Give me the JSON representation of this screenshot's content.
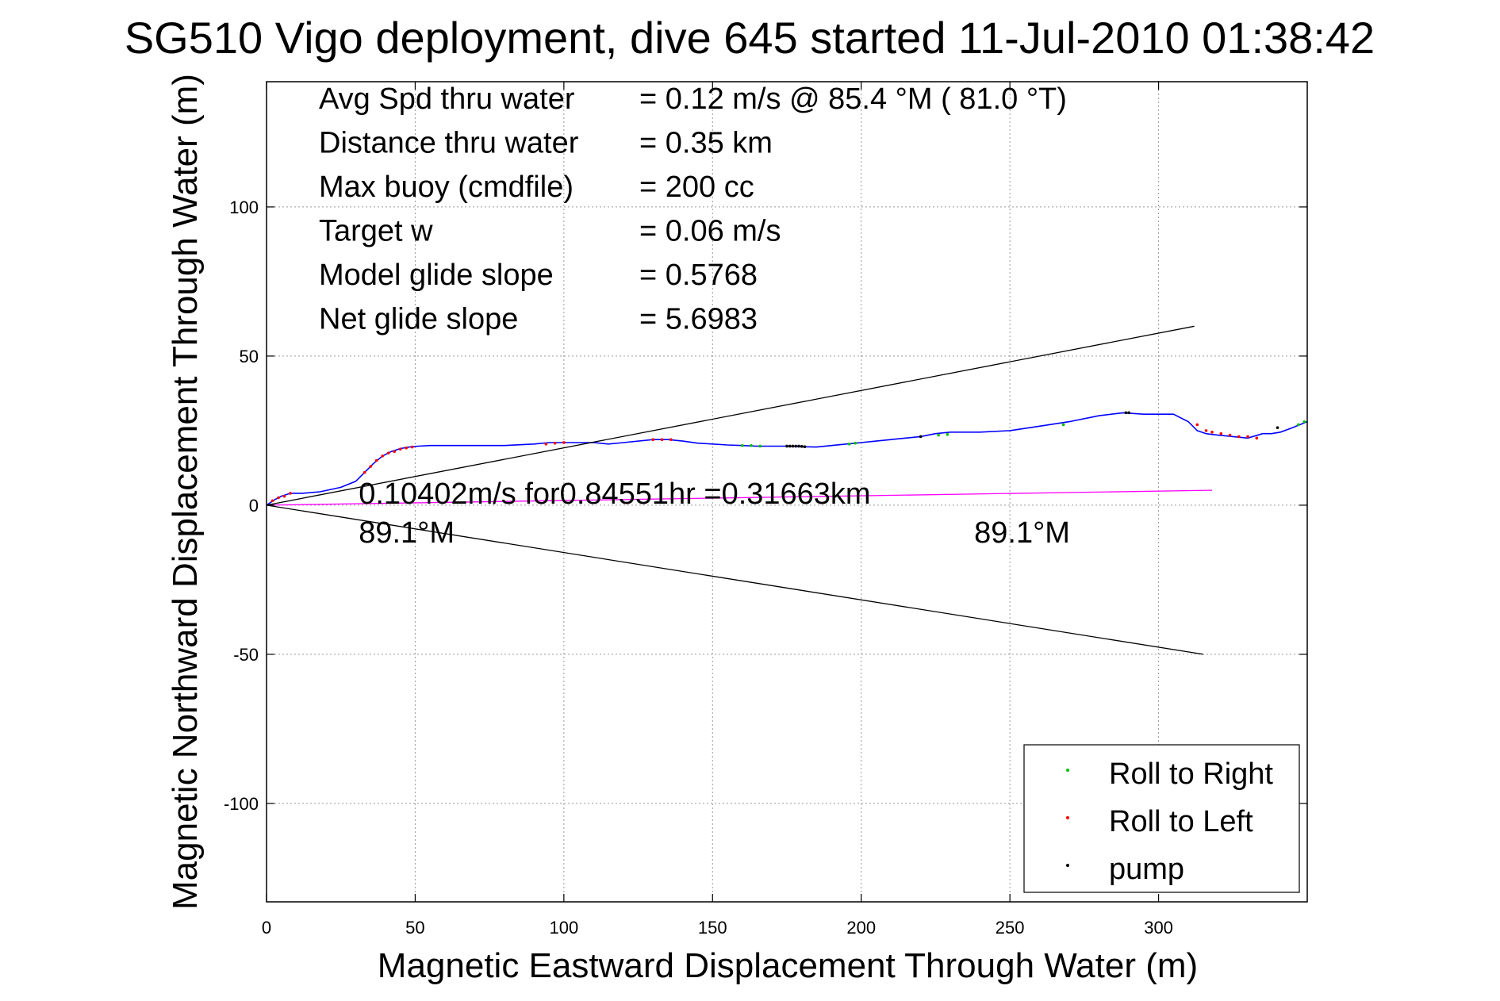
{
  "chart_data": {
    "type": "line",
    "title": "SG510 Vigo deployment, dive 645 started 11-Jul-2010 01:38:42",
    "xlabel": "Magnetic Eastward Displacement Through Water (m)",
    "ylabel": "Magnetic Northward Displacement Through Water (m)",
    "xlim": [
      0,
      350
    ],
    "ylim": [
      -133,
      142
    ],
    "xticks": [
      0,
      50,
      100,
      150,
      200,
      250,
      300
    ],
    "yticks": [
      -100,
      -50,
      0,
      50,
      100
    ],
    "grid": true,
    "stats": [
      {
        "label": "Avg Spd thru water",
        "value": "=  0.12 m/s @  85.4 °M ( 81.0 °T)"
      },
      {
        "label": "Distance thru water",
        "value": "=  0.35 km"
      },
      {
        "label": "Max buoy (cmdfile)",
        "value": "= 200 cc"
      },
      {
        "label": "Target w",
        "value": "= 0.06 m/s"
      },
      {
        "label": "Model glide slope",
        "value": "= 0.5768"
      },
      {
        "label": "Net glide slope",
        "value": "= 5.6983"
      }
    ],
    "annotations": [
      {
        "text": "0.10402m/s for0.84551hr =0.31663km",
        "x": 31,
        "y": 4
      },
      {
        "text": "89.1°M",
        "x": 31,
        "y": -9
      },
      {
        "text": "89.1°M",
        "x": 238,
        "y": -9
      }
    ],
    "series": [
      {
        "kind": "track",
        "color": "#0000ff",
        "x": [
          0,
          3,
          5,
          8,
          12,
          18,
          25,
          30,
          33,
          36,
          39,
          42,
          45,
          48,
          51,
          55,
          60,
          70,
          80,
          90,
          95,
          100,
          105,
          110,
          115,
          120,
          130,
          135,
          140,
          145,
          150,
          155,
          160,
          165,
          170,
          175,
          180,
          185,
          190,
          195,
          200,
          205,
          210,
          220,
          225,
          230,
          240,
          250,
          260,
          270,
          280,
          288,
          295,
          305,
          310,
          313,
          316,
          320,
          325,
          330,
          335,
          338,
          341,
          345,
          350
        ],
        "y": [
          0,
          2,
          3,
          4,
          4,
          4.5,
          6,
          8,
          11,
          14,
          16.5,
          18,
          19,
          19.5,
          19.8,
          20,
          20,
          20,
          20,
          20.5,
          21,
          21,
          21,
          21,
          20.5,
          21,
          22,
          22,
          21.5,
          20.8,
          20.5,
          20.2,
          20,
          19.8,
          19.8,
          19.8,
          19.6,
          19.5,
          20,
          20.5,
          21,
          21.5,
          22,
          23,
          24,
          24.5,
          24.5,
          25,
          26.5,
          28,
          30,
          31,
          30.5,
          30.5,
          28,
          25,
          24,
          23.5,
          23,
          22.5,
          24,
          24,
          24.5,
          26,
          28
        ]
      },
      {
        "kind": "surface-drift",
        "color": "#ff00ff",
        "x": [
          0,
          318
        ],
        "y": [
          0,
          5
        ]
      },
      {
        "kind": "envelope",
        "color": "#000000",
        "x": [
          0,
          312
        ],
        "y": [
          0,
          60
        ]
      },
      {
        "kind": "envelope",
        "color": "#000000",
        "x": [
          0,
          315
        ],
        "y": [
          0,
          -50
        ]
      }
    ],
    "markers": {
      "roll_right": {
        "color": "#00c000",
        "x": [
          160,
          163,
          166,
          196,
          198,
          226,
          229,
          268,
          347,
          349
        ],
        "y": [
          20,
          20,
          19.8,
          20.5,
          20.8,
          23.5,
          23.7,
          27,
          27,
          28
        ]
      },
      "roll_left": {
        "color": "#ff0000",
        "x": [
          2,
          4,
          6,
          8,
          33,
          35,
          37,
          39,
          41,
          43,
          45,
          47,
          49,
          94,
          97,
          100,
          130,
          133,
          136,
          313,
          316,
          318,
          321,
          324,
          327,
          330,
          333
        ],
        "y": [
          1.5,
          2.5,
          3,
          4,
          11,
          13,
          15,
          16.5,
          17.5,
          18,
          18.8,
          19.2,
          19.5,
          20.5,
          20.8,
          21,
          22,
          22,
          22,
          27,
          25,
          24.5,
          24,
          23.5,
          23,
          23,
          22.5
        ]
      },
      "pump": {
        "color": "#000000",
        "x": [
          175,
          176,
          177,
          178,
          179,
          180,
          181,
          220,
          289,
          290,
          340
        ],
        "y": [
          19.8,
          19.8,
          19.8,
          19.8,
          19.8,
          19.7,
          19.6,
          23,
          31,
          31,
          26
        ]
      }
    },
    "legend": {
      "position": "bottom-right",
      "entries": [
        {
          "label": "Roll to Right",
          "color": "#00c000"
        },
        {
          "label": "Roll to Left",
          "color": "#ff0000"
        },
        {
          "label": "pump",
          "color": "#000000"
        }
      ]
    }
  }
}
